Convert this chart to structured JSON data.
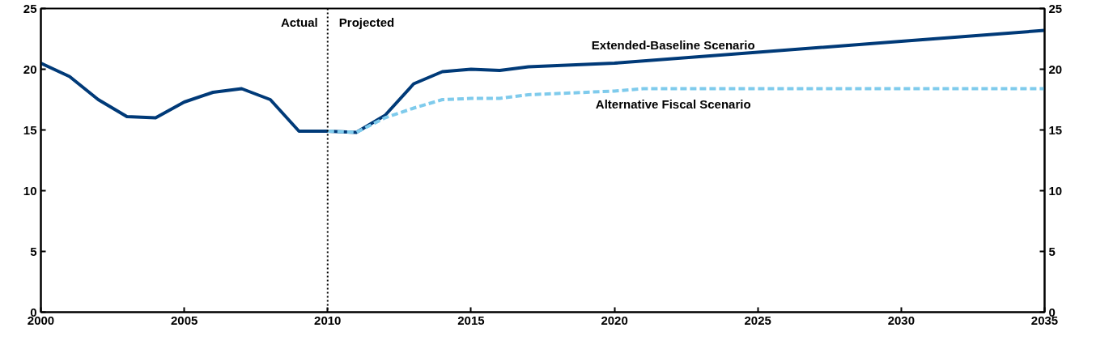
{
  "chart_data": {
    "type": "line",
    "series": [
      {
        "name": "Extended-Baseline Scenario",
        "color": "#003a78",
        "line_style": "solid",
        "x": [
          2000,
          2001,
          2002,
          2003,
          2004,
          2005,
          2006,
          2007,
          2008,
          2009,
          2010,
          2011,
          2012,
          2013,
          2014,
          2015,
          2016,
          2017,
          2020,
          2025,
          2030,
          2035
        ],
        "values": [
          20.5,
          19.4,
          17.5,
          16.1,
          16.0,
          17.3,
          18.1,
          18.4,
          17.5,
          14.9,
          14.9,
          14.8,
          16.2,
          18.8,
          19.8,
          20.0,
          19.9,
          20.2,
          20.5,
          21.4,
          22.3,
          23.2
        ]
      },
      {
        "name": "Alternative Fiscal Scenario",
        "color": "#7fcbec",
        "line_style": "dashed",
        "x": [
          2010,
          2011,
          2012,
          2013,
          2014,
          2015,
          2016,
          2017,
          2020,
          2021,
          2035
        ],
        "values": [
          14.9,
          14.8,
          16.0,
          16.8,
          17.5,
          17.6,
          17.6,
          17.9,
          18.2,
          18.4,
          18.4
        ]
      }
    ],
    "xlim": [
      2000,
      2035
    ],
    "xticks": [
      2000,
      2005,
      2010,
      2015,
      2020,
      2025,
      2030,
      2035
    ],
    "ylim": [
      0,
      25
    ],
    "yticks": [
      0,
      5,
      10,
      15,
      20,
      25
    ],
    "y2lim": [
      0,
      25
    ],
    "y2ticks": [
      0,
      5,
      10,
      15,
      20,
      25
    ],
    "ref_lines": [
      {
        "axis": "x",
        "value": 2010,
        "label": null,
        "color": "#000000",
        "line_style": "dotted"
      }
    ],
    "annotations": [
      {
        "text": "Actual",
        "x": 2010,
        "y": 25
      },
      {
        "text": "Projected",
        "x": 2010,
        "y": 25
      }
    ],
    "grid": false,
    "marker": "none"
  }
}
